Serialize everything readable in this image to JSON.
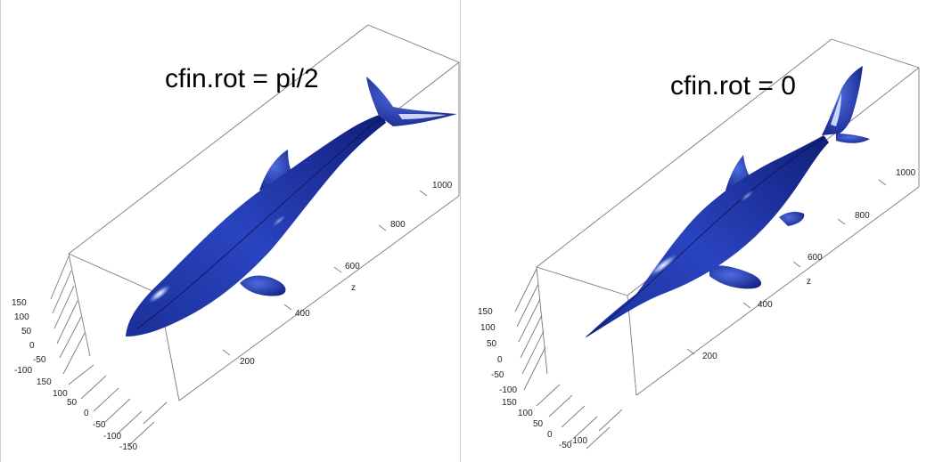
{
  "colors": {
    "body": "#2137a5",
    "body_dark": "#0e1c6e",
    "body_light": "#5a78e0",
    "highlight": "#ffffff",
    "box": "#7a7a7a"
  },
  "panels": [
    {
      "caption": "cfin.rot = pi/2",
      "z_axis": {
        "title": "z",
        "ticks": [
          "200",
          "400",
          "600",
          "800",
          "1000"
        ]
      },
      "y_axis": {
        "ticks": [
          "150",
          "100",
          "50",
          "0",
          "-50",
          "-100"
        ]
      },
      "x_axis": {
        "ticks": [
          "150",
          "100",
          "50",
          "0",
          "-50",
          "-100",
          "-150"
        ]
      }
    },
    {
      "caption": "cfin.rot = 0",
      "z_axis": {
        "title": "z",
        "ticks": [
          "200",
          "400",
          "600",
          "800",
          "1000"
        ]
      },
      "y_axis": {
        "ticks": [
          "150",
          "100",
          "50",
          "0",
          "-50",
          "-100"
        ]
      },
      "x_axis": {
        "ticks": [
          "150",
          "100",
          "50",
          "0",
          "-50",
          "-100"
        ]
      }
    }
  ]
}
